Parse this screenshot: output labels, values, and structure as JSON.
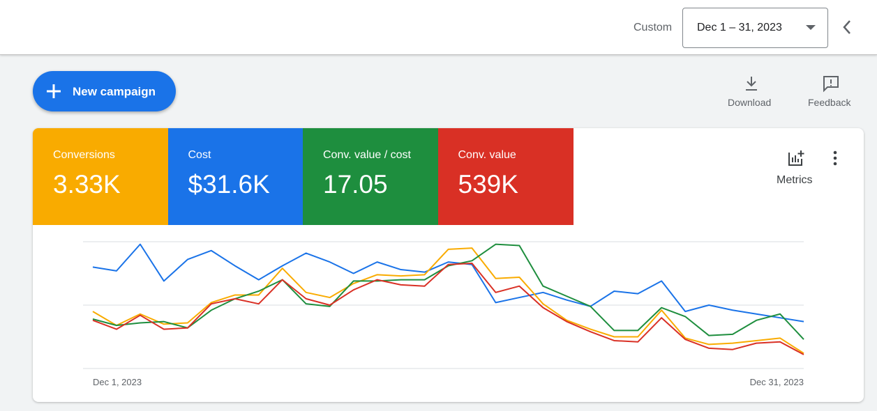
{
  "header": {
    "range_label": "Custom",
    "date_range": "Dec 1 – 31, 2023"
  },
  "toolbar": {
    "new_campaign": "New campaign",
    "download": "Download",
    "feedback": "Feedback"
  },
  "scorecards": [
    {
      "label": "Conversions",
      "value": "3.33K",
      "color": "#f9ab00"
    },
    {
      "label": "Cost",
      "value": "$31.6K",
      "color": "#1a73e8"
    },
    {
      "label": "Conv. value / cost",
      "value": "17.05",
      "color": "#1e8e3e"
    },
    {
      "label": "Conv. value",
      "value": "539K",
      "color": "#d93025"
    }
  ],
  "metrics_label": "Metrics",
  "chart_data": {
    "type": "line",
    "categories": [
      "Dec 1, 2023",
      null,
      null,
      null,
      null,
      null,
      null,
      null,
      null,
      null,
      null,
      null,
      null,
      null,
      null,
      null,
      null,
      null,
      null,
      null,
      null,
      null,
      null,
      null,
      null,
      null,
      null,
      null,
      null,
      null,
      "Dec 31, 2023"
    ],
    "ylim": [
      0,
      100
    ],
    "yticks": [
      0,
      50,
      100
    ],
    "grid": true,
    "series": [
      {
        "color": "#1a73e8",
        "values": [
          80,
          77,
          98,
          69,
          86,
          93,
          81,
          70,
          81,
          91,
          84,
          75,
          84,
          78,
          76,
          84,
          82,
          52,
          56,
          60,
          54,
          49,
          61,
          59,
          69,
          45,
          50,
          46,
          43,
          40,
          37
        ]
      },
      {
        "color": "#f9ab00",
        "values": [
          45,
          34,
          43,
          35,
          36,
          52,
          58,
          58,
          79,
          60,
          56,
          67,
          74,
          73,
          74,
          94,
          95,
          71,
          72,
          51,
          38,
          31,
          25,
          25,
          46,
          24,
          19,
          20,
          22,
          24,
          12
        ]
      },
      {
        "color": "#1e8e3e",
        "values": [
          39,
          34,
          36,
          37,
          32,
          46,
          55,
          61,
          70,
          51,
          49,
          69,
          69,
          70,
          70,
          81,
          85,
          98,
          97,
          65,
          57,
          49,
          30,
          30,
          48,
          41,
          26,
          27,
          38,
          43,
          23
        ]
      },
      {
        "color": "#d93025",
        "values": [
          38,
          31,
          42,
          31,
          32,
          51,
          55,
          51,
          70,
          55,
          50,
          62,
          70,
          66,
          65,
          82,
          83,
          60,
          65,
          48,
          37,
          29,
          22,
          21,
          40,
          23,
          16,
          15,
          20,
          21,
          11
        ]
      }
    ]
  }
}
